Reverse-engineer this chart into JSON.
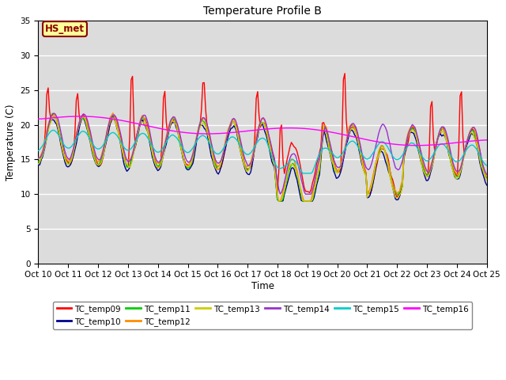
{
  "title": "Temperature Profile B",
  "xlabel": "Time",
  "ylabel": "Temperature (C)",
  "ylim": [
    0,
    35
  ],
  "yticks": [
    0,
    5,
    10,
    15,
    20,
    25,
    30,
    35
  ],
  "annotation_text": "HS_met",
  "annotation_color": "#8B0000",
  "annotation_bg": "#FFFF99",
  "bg_color": "#DCDCDC",
  "legend_entries": [
    "TC_temp09",
    "TC_temp10",
    "TC_temp11",
    "TC_temp12",
    "TC_temp13",
    "TC_temp14",
    "TC_temp15",
    "TC_temp16"
  ],
  "line_colors": [
    "#FF0000",
    "#00008B",
    "#00CC00",
    "#FF8C00",
    "#CCCC00",
    "#9932CC",
    "#00CCCC",
    "#FF00FF"
  ],
  "xtick_labels": [
    "Oct 10",
    "Oct 11",
    "Oct 12",
    "Oct 13",
    "Oct 14",
    "Oct 15",
    "Oct 16",
    "Oct 17",
    "Oct 18",
    "Oct 19",
    "Oct 20",
    "Oct 21",
    "Oct 22",
    "Oct 23",
    "Oct 24",
    "Oct 25"
  ],
  "n_points": 320
}
